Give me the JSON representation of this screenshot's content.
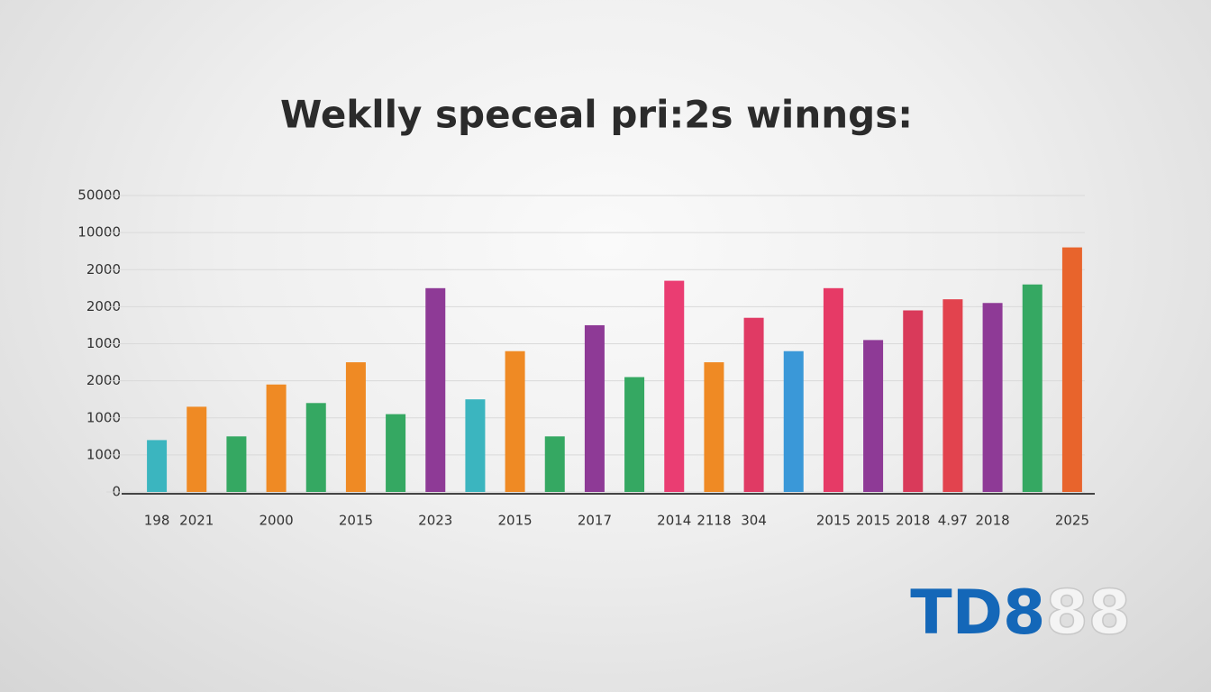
{
  "chart_data": {
    "type": "bar",
    "title": "Weklly speceal pri:2s winngs:",
    "categories": [
      "198",
      "2021",
      null,
      "2000",
      null,
      "2015",
      null,
      "2023",
      null,
      "2015",
      null,
      "2017",
      null,
      "2014",
      "2118",
      "304",
      null,
      "2015",
      "2015",
      "2018",
      "4.97",
      "2018",
      null,
      "2025"
    ],
    "values": [
      1.4,
      2.3,
      1.5,
      2.9,
      2.4,
      3.5,
      2.1,
      5.5,
      2.5,
      3.8,
      1.5,
      4.5,
      3.1,
      5.7,
      3.5,
      4.7,
      3.8,
      5.5,
      4.1,
      4.9,
      5.2,
      5.1,
      5.6,
      6.6
    ],
    "colors": [
      "#3bb5bf",
      "#ef8a24",
      "#35a862",
      "#ef8a24",
      "#35a862",
      "#ef8a24",
      "#35a862",
      "#8e3a96",
      "#3bb5bf",
      "#ef8a24",
      "#35a862",
      "#8e3a96",
      "#35a862",
      "#ea3d72",
      "#ef8a24",
      "#e03a64",
      "#3a98d8",
      "#e63a66",
      "#8e3a96",
      "#d93a5a",
      "#e2434e",
      "#8e3a96",
      "#35a862",
      "#e8642c"
    ],
    "ylim": [
      0,
      8
    ],
    "yticks": [
      {
        "value": 0,
        "label": "0"
      },
      {
        "value": 1,
        "label": "1000"
      },
      {
        "value": 2,
        "label": "1000"
      },
      {
        "value": 3,
        "label": "2000"
      },
      {
        "value": 4,
        "label": "1000"
      },
      {
        "value": 5,
        "label": "2000"
      },
      {
        "value": 6,
        "label": "2000"
      },
      {
        "value": 7,
        "label": "10000"
      },
      {
        "value": 8,
        "label": "50000"
      }
    ],
    "grid": true
  },
  "logo": {
    "primary": "TD8",
    "secondary": "88"
  }
}
